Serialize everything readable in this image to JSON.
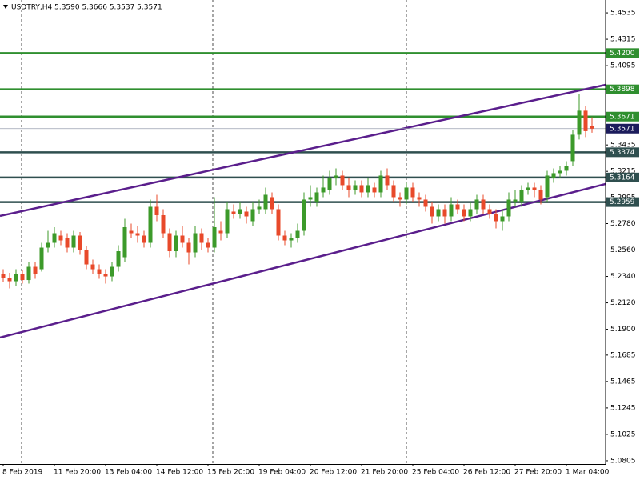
{
  "chart_data": {
    "type": "candlestick",
    "title": "USDTRY,H4  5.3590 5.3666 5.3537 5.3571",
    "categories": [
      "8 Feb 2019",
      null,
      null,
      null,
      null,
      null,
      null,
      null,
      "11 Feb 20:00",
      null,
      null,
      null,
      null,
      null,
      null,
      null,
      "13 Feb 04:00",
      null,
      null,
      null,
      null,
      null,
      null,
      null,
      "14 Feb 12:00",
      null,
      null,
      null,
      null,
      null,
      null,
      null,
      "15 Feb 20:00",
      null,
      null,
      null,
      null,
      null,
      null,
      null,
      "19 Feb 04:00",
      null,
      null,
      null,
      null,
      null,
      null,
      null,
      "20 Feb 12:00",
      null,
      null,
      null,
      null,
      null,
      null,
      null,
      "21 Feb 20:00",
      null,
      null,
      null,
      null,
      null,
      null,
      null,
      "25 Feb 04:00",
      null,
      null,
      null,
      null,
      null,
      null,
      null,
      "26 Feb 12:00",
      null,
      null,
      null,
      null,
      null,
      null,
      null,
      "27 Feb 20:00",
      null,
      null,
      null,
      null,
      null,
      null,
      null,
      "1 Mar 04:00",
      null,
      null,
      null,
      null
    ],
    "open": [
      5.236,
      5.233,
      5.23,
      5.236,
      5.231,
      5.242,
      5.24,
      5.258,
      5.262,
      5.268,
      5.266,
      5.258,
      5.268,
      5.256,
      5.244,
      5.24,
      5.236,
      5.234,
      5.242,
      5.25,
      5.272,
      5.27,
      5.268,
      5.262,
      5.292,
      5.285,
      5.27,
      5.255,
      5.268,
      5.262,
      5.254,
      5.27,
      5.262,
      5.258,
      5.272,
      5.27,
      5.288,
      5.286,
      5.288,
      5.28,
      5.29,
      5.29,
      5.3,
      5.29,
      5.268,
      5.264,
      5.266,
      5.272,
      5.298,
      5.296,
      5.304,
      5.306,
      5.316,
      5.318,
      5.31,
      5.306,
      5.31,
      5.304,
      5.308,
      5.304,
      5.318,
      5.31,
      5.3,
      5.298,
      5.308,
      5.3,
      5.298,
      5.292,
      5.284,
      5.29,
      5.284,
      5.294,
      5.29,
      5.284,
      5.29,
      5.298,
      5.29,
      5.286,
      5.28,
      5.284,
      5.296,
      5.296,
      5.306,
      5.308,
      5.306,
      5.3,
      5.316,
      5.32,
      5.322,
      5.33,
      5.352,
      5.372,
      5.359
    ],
    "high": [
      5.24,
      5.237,
      5.24,
      5.239,
      5.246,
      5.246,
      5.262,
      5.272,
      5.275,
      5.272,
      5.27,
      5.272,
      5.271,
      5.259,
      5.248,
      5.244,
      5.24,
      5.246,
      5.26,
      5.282,
      5.278,
      5.276,
      5.272,
      5.298,
      5.302,
      5.29,
      5.274,
      5.272,
      5.276,
      5.266,
      5.276,
      5.274,
      5.266,
      5.3,
      5.28,
      5.296,
      5.294,
      5.296,
      5.292,
      5.296,
      5.298,
      5.308,
      5.304,
      5.294,
      5.272,
      5.27,
      5.278,
      5.304,
      5.31,
      5.308,
      5.318,
      5.322,
      5.324,
      5.322,
      5.316,
      5.314,
      5.314,
      5.316,
      5.312,
      5.322,
      5.324,
      5.314,
      5.304,
      5.312,
      5.312,
      5.304,
      5.302,
      5.296,
      5.294,
      5.294,
      5.3,
      5.298,
      5.294,
      5.296,
      5.302,
      5.302,
      5.294,
      5.29,
      5.29,
      5.304,
      5.306,
      5.31,
      5.312,
      5.312,
      5.31,
      5.322,
      5.324,
      5.326,
      5.33,
      5.356,
      5.386,
      5.376,
      5.3666
    ],
    "low": [
      5.229,
      5.224,
      5.226,
      5.228,
      5.228,
      5.232,
      5.238,
      5.254,
      5.258,
      5.26,
      5.254,
      5.254,
      5.252,
      5.24,
      5.236,
      5.232,
      5.228,
      5.23,
      5.238,
      5.246,
      5.266,
      5.262,
      5.258,
      5.258,
      5.28,
      5.266,
      5.25,
      5.25,
      5.258,
      5.244,
      5.25,
      5.256,
      5.254,
      5.254,
      5.264,
      5.266,
      5.282,
      5.282,
      5.278,
      5.276,
      5.286,
      5.286,
      5.286,
      5.264,
      5.26,
      5.258,
      5.262,
      5.268,
      5.292,
      5.292,
      5.3,
      5.302,
      5.31,
      5.306,
      5.3,
      5.302,
      5.3,
      5.3,
      5.3,
      5.3,
      5.306,
      5.296,
      5.292,
      5.294,
      5.296,
      5.292,
      5.288,
      5.278,
      5.28,
      5.278,
      5.28,
      5.286,
      5.28,
      5.28,
      5.286,
      5.286,
      5.282,
      5.274,
      5.272,
      5.28,
      5.292,
      5.292,
      5.302,
      5.3,
      5.294,
      5.296,
      5.312,
      5.316,
      5.318,
      5.326,
      5.348,
      5.35,
      5.3537
    ],
    "close": [
      5.233,
      5.23,
      5.236,
      5.231,
      5.242,
      5.236,
      5.258,
      5.262,
      5.27,
      5.264,
      5.258,
      5.268,
      5.256,
      5.244,
      5.24,
      5.236,
      5.234,
      5.242,
      5.255,
      5.275,
      5.27,
      5.268,
      5.262,
      5.292,
      5.285,
      5.27,
      5.255,
      5.268,
      5.262,
      5.254,
      5.27,
      5.262,
      5.258,
      5.275,
      5.27,
      5.29,
      5.286,
      5.29,
      5.284,
      5.29,
      5.292,
      5.302,
      5.29,
      5.268,
      5.264,
      5.266,
      5.272,
      5.298,
      5.3,
      5.304,
      5.308,
      5.316,
      5.318,
      5.31,
      5.306,
      5.31,
      5.304,
      5.31,
      5.304,
      5.318,
      5.31,
      5.3,
      5.298,
      5.308,
      5.3,
      5.298,
      5.292,
      5.284,
      5.29,
      5.284,
      5.294,
      5.29,
      5.284,
      5.29,
      5.298,
      5.29,
      5.286,
      5.28,
      5.284,
      5.298,
      5.298,
      5.306,
      5.308,
      5.306,
      5.298,
      5.318,
      5.32,
      5.322,
      5.326,
      5.352,
      5.372,
      5.355,
      5.3571
    ],
    "up_color": "#3c9a2a",
    "down_color": "#e8492a",
    "ylim": [
      5.0778,
      5.4642
    ],
    "yticks": [
      5.4535,
      5.4315,
      5.4095,
      5.3875,
      5.3655,
      5.3435,
      5.3215,
      5.2995,
      {
        "value": 5.278,
        "label": "5.2780"
      },
      {
        "value": 5.256,
        "label": "5.2560"
      },
      {
        "value": 5.234,
        "label": "5.2340"
      },
      {
        "value": 5.212,
        "label": "5.2120"
      },
      {
        "value": 5.19,
        "label": "5.1900"
      },
      5.1685,
      5.1465,
      5.1245,
      5.1025,
      5.0805
    ],
    "levels": [
      {
        "value": 5.42,
        "label": "5.4200",
        "color": "#2f8f2f"
      },
      {
        "value": 5.3898,
        "color": "#2f8f2f"
      },
      {
        "value": 5.3671,
        "color": "#2f8f2f"
      },
      {
        "value": 5.3374,
        "color": "#2f4f4f"
      },
      {
        "value": 5.3164,
        "color": "#2f4f4f"
      },
      {
        "value": 5.2959,
        "color": "#2f4f4f"
      }
    ],
    "price_line_color": "#1c1c5c",
    "trendlines": [
      {
        "start": 5.2844,
        "end": 5.3936,
        "color": "#5a1e8c"
      },
      {
        "start": 5.1831,
        "end": 5.311,
        "color": "#5a1e8c"
      }
    ]
  }
}
